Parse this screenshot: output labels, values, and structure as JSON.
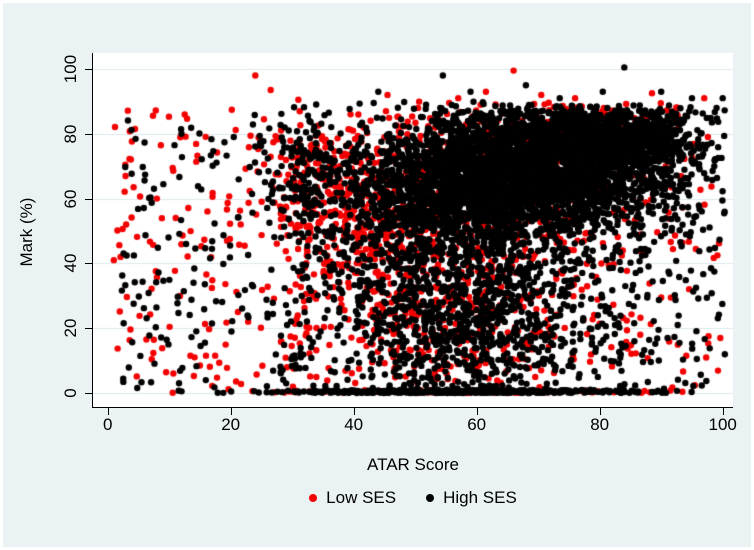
{
  "figure": {
    "background_color": "#eaf2f3",
    "plot_background_color": "#ffffff",
    "grid_color": "#dde8ec",
    "axis_color": "#000000",
    "text_color": "#000000"
  },
  "y_axis": {
    "label": "Mark (%)",
    "ticks": [
      0,
      20,
      40,
      60,
      80,
      100
    ]
  },
  "x_axis": {
    "label": "ATAR Score",
    "ticks": [
      0,
      20,
      40,
      60,
      80,
      100
    ]
  },
  "legend": {
    "items": [
      {
        "label": "Low SES",
        "color": "#f40000",
        "marker": "dot"
      },
      {
        "label": "High SES",
        "color": "#000000",
        "marker": "dot"
      }
    ]
  },
  "chart_data": {
    "type": "scatter",
    "title": "",
    "xlabel": "ATAR Score",
    "ylabel": "Mark (%)",
    "xlim": [
      0,
      100
    ],
    "ylim": [
      0,
      100
    ],
    "grid": "horizontal",
    "legend_position": "bottom",
    "marker_radius_px": 3.2,
    "seed": 20240611,
    "series": [
      {
        "name": "Low SES",
        "color": "#f40000",
        "clusters": [
          {
            "n": 150,
            "x": {
              "dist": "uniform",
              "min": 1,
              "max": 33
            },
            "y": {
              "dist": "uniform",
              "min": 1,
              "max": 88
            }
          },
          {
            "n": 90,
            "x": {
              "dist": "normal",
              "mu": 33,
              "sd": 4.5,
              "min": 22,
              "max": 45
            },
            "y": {
              "dist": "normal",
              "mu": 65,
              "sd": 11,
              "min": 35,
              "max": 85
            }
          },
          {
            "n": 280,
            "x": {
              "dist": "normal",
              "mu": 40,
              "sd": 6,
              "min": 28,
              "max": 56
            },
            "y": {
              "dist": "normal",
              "mu": 55,
              "sd": 17,
              "min": 3,
              "max": 85
            }
          },
          {
            "n": 520,
            "x": {
              "dist": "normal",
              "mu": 64,
              "sd": 13,
              "min": 30,
              "max": 100
            },
            "y": {
              "dist": "normal",
              "mu": 66,
              "sd": 11,
              "min": 10,
              "max": 90
            }
          },
          {
            "n": 120,
            "x": {
              "dist": "normal",
              "mu": 80,
              "sd": 9,
              "min": 55,
              "max": 100
            },
            "y": {
              "dist": "normal",
              "mu": 83,
              "sd": 3.5,
              "min": 72,
              "max": 90
            }
          },
          {
            "n": 300,
            "x": {
              "dist": "normal",
              "mu": 56,
              "sd": 10,
              "min": 30,
              "max": 88
            },
            "y": {
              "dist": "normal",
              "mu": 24,
              "sd": 14,
              "min": 1,
              "max": 55
            }
          },
          {
            "n": 100,
            "x": {
              "dist": "normal",
              "mu": 57,
              "sd": 16,
              "min": 3,
              "max": 99
            },
            "y": {
              "dist": "normal",
              "mu": 0.3,
              "sd": 0.35,
              "min": 0,
              "max": 1
            }
          },
          {
            "n": 230,
            "x": {
              "dist": "uniform",
              "min": 30,
              "max": 100
            },
            "y": {
              "dist": "uniform",
              "min": 1,
              "max": 90
            }
          }
        ],
        "points": [
          [
            24,
            98
          ],
          [
            26.5,
            93.5
          ],
          [
            66,
            99.5
          ],
          [
            61.5,
            93
          ],
          [
            57,
            91
          ],
          [
            31,
            90.5
          ],
          [
            45.5,
            92
          ],
          [
            70.5,
            92
          ],
          [
            76,
            91
          ],
          [
            88.5,
            92.5
          ],
          [
            97,
            91
          ],
          [
            3,
            52
          ],
          [
            1,
            41
          ],
          [
            8,
            60
          ]
        ]
      },
      {
        "name": "High SES",
        "color": "#000000",
        "clusters": [
          {
            "n": 2600,
            "x": {
              "dist": "normal",
              "mu": 69,
              "sd": 12,
              "min": 31,
              "max": 100.5
            },
            "y": {
              "dist": "normal",
              "mu": 69,
              "sd": 9,
              "min": 20,
              "max": 89
            }
          },
          {
            "n": 1000,
            "x": {
              "dist": "normal",
              "mu": 80,
              "sd": 8,
              "min": 50,
              "max": 100.5
            },
            "y": {
              "dist": "normal",
              "mu": 79,
              "sd": 4.5,
              "min": 62,
              "max": 89
            }
          },
          {
            "n": 1100,
            "x": {
              "dist": "normal",
              "mu": 57,
              "sd": 9,
              "min": 30,
              "max": 100
            },
            "y": {
              "dist": "normal",
              "mu": 60,
              "sd": 10,
              "min": 15,
              "max": 88
            }
          },
          {
            "n": 150,
            "x": {
              "dist": "normal",
              "mu": 33,
              "sd": 4,
              "min": 24,
              "max": 45
            },
            "y": {
              "dist": "normal",
              "mu": 68,
              "sd": 9,
              "min": 40,
              "max": 85
            }
          },
          {
            "n": 850,
            "x": {
              "dist": "normal",
              "mu": 57,
              "sd": 11,
              "min": 30,
              "max": 93
            },
            "y": {
              "dist": "normal",
              "mu": 25,
              "sd": 14,
              "min": 1,
              "max": 58
            }
          },
          {
            "n": 430,
            "x": {
              "dist": "normal",
              "mu": 58,
              "sd": 14,
              "min": 2,
              "max": 99.5
            },
            "y": {
              "dist": "normal",
              "mu": 0.3,
              "sd": 0.35,
              "min": 0,
              "max": 1
            }
          },
          {
            "n": 170,
            "x": {
              "dist": "uniform",
              "min": 2,
              "max": 33
            },
            "y": {
              "dist": "uniform",
              "min": 1,
              "max": 86
            }
          },
          {
            "n": 700,
            "x": {
              "dist": "uniform",
              "min": 28,
              "max": 100.5
            },
            "y": {
              "dist": "uniform",
              "min": 1,
              "max": 90
            }
          }
        ],
        "points": [
          [
            54.5,
            98
          ],
          [
            44,
            93
          ],
          [
            84,
            100.5
          ],
          [
            59,
            93
          ],
          [
            80.5,
            93
          ],
          [
            95,
            91
          ],
          [
            90,
            93
          ],
          [
            73.5,
            91
          ],
          [
            68,
            95
          ],
          [
            100,
            91
          ],
          [
            99,
            88
          ],
          [
            12,
            80
          ],
          [
            20.5,
            79
          ]
        ]
      }
    ]
  }
}
